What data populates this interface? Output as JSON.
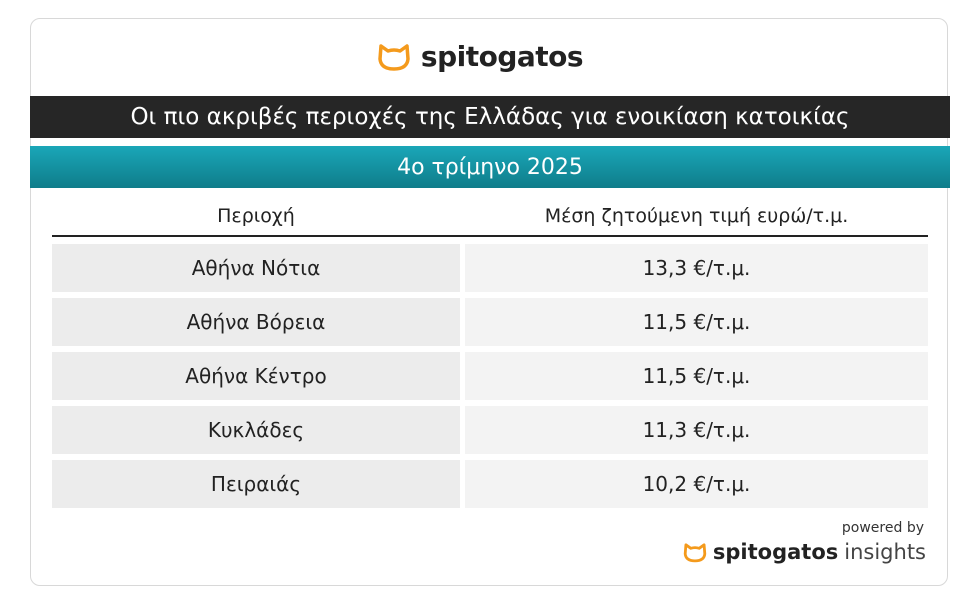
{
  "header": {
    "brand": "spitogatos"
  },
  "title": "Οι πιο ακριβές περιοχές της Ελλάδας για ενοικίαση κατοικίας",
  "subtitle": "4ο τρίμηνο 2025",
  "table": {
    "columns": [
      "Περιοχή",
      "Μέση ζητούμενη τιμή ευρώ/τ.μ."
    ],
    "rows": [
      [
        "Αθήνα Νότια",
        "13,3 €/τ.μ."
      ],
      [
        "Αθήνα Βόρεια",
        "11,5 €/τ.μ."
      ],
      [
        "Αθήνα Κέντρο",
        "11,5 €/τ.μ."
      ],
      [
        "Κυκλάδες",
        "11,3 €/τ.μ."
      ],
      [
        "Πειραιάς",
        "10,2 €/τ.μ."
      ]
    ]
  },
  "footer": {
    "powered": "powered by",
    "brand": "spitogatos",
    "suffix": "insights"
  }
}
